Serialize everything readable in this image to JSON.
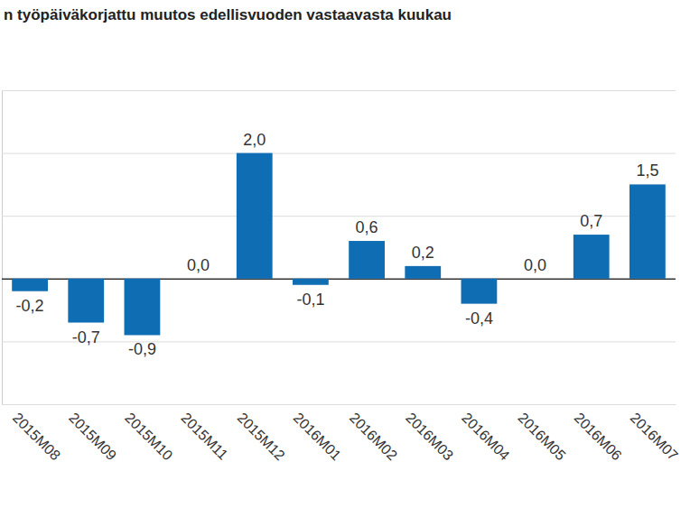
{
  "chart_data": {
    "type": "bar",
    "title": "n työpäiväkorjattu muutos edellisvuoden vastaavasta kuukau",
    "categories": [
      "2015M08",
      "2015M09",
      "2015M10",
      "2015M11",
      "2015M12",
      "2016M01",
      "2016M02",
      "2016M03",
      "2016M04",
      "2016M05",
      "2016M06",
      "2016M07"
    ],
    "values": [
      -0.2,
      -0.7,
      -0.9,
      0.0,
      2.0,
      -0.1,
      0.6,
      0.2,
      -0.4,
      0.0,
      0.7,
      1.5
    ],
    "value_labels": [
      "-0,2",
      "-0,7",
      "-0,9",
      "0,0",
      "2,0",
      "-0,1",
      "0,6",
      "0,2",
      "-0,4",
      "0,0",
      "0,7",
      "1,5"
    ],
    "color": "#0f6db3",
    "ylim": [
      -2,
      3
    ],
    "yticks": [
      -2,
      -1,
      0,
      1,
      2,
      3
    ],
    "grid": true,
    "data_labels": true,
    "tick_labels": "x"
  }
}
